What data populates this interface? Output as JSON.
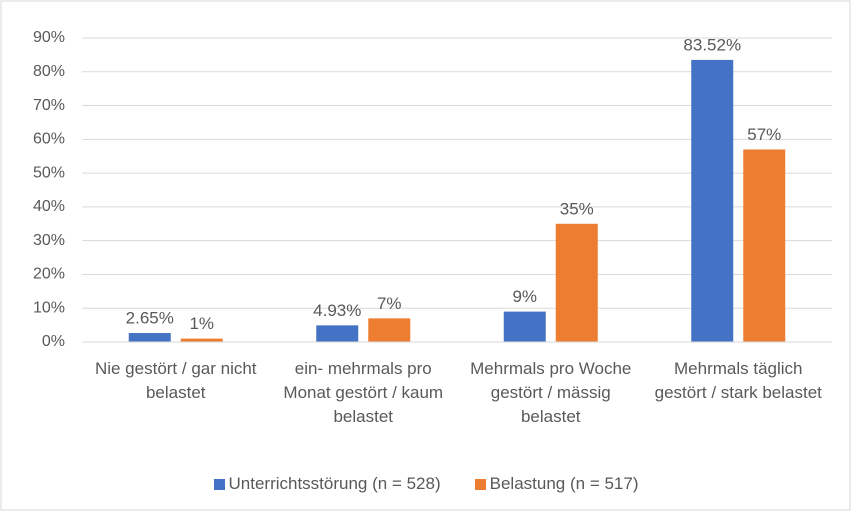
{
  "chart_data": {
    "type": "bar",
    "categories": [
      "Nie gestört / gar nicht belastet",
      "ein- mehrmals pro Monat gestört / kaum belastet",
      "Mehrmals pro Woche gestört / mässig belastet",
      "Mehrmals täglich gestört / stark belastet"
    ],
    "series": [
      {
        "name": "Unterrichtsstörung (n = 528)",
        "color": "#4472c4",
        "values": [
          2.65,
          4.93,
          9,
          83.52
        ],
        "value_labels": [
          "2.65%",
          "4.93%",
          "9%",
          "83.52%"
        ]
      },
      {
        "name": "Belastung (n = 517)",
        "color": "#ed7d31",
        "values": [
          1,
          7,
          35,
          57
        ],
        "value_labels": [
          "1%",
          "7%",
          "35%",
          "57%"
        ]
      }
    ],
    "ylim": [
      0,
      90
    ],
    "yticks": [
      {
        "value": 0,
        "label": "0%"
      },
      {
        "value": 10,
        "label": "10%"
      },
      {
        "value": 20,
        "label": "20%"
      },
      {
        "value": 30,
        "label": "30%"
      },
      {
        "value": 40,
        "label": "40%"
      },
      {
        "value": 50,
        "label": "50%"
      },
      {
        "value": 60,
        "label": "60%"
      },
      {
        "value": 70,
        "label": "70%"
      },
      {
        "value": 80,
        "label": "80%"
      },
      {
        "value": 90,
        "label": "90%"
      }
    ],
    "grid": true,
    "legend": "bottom"
  }
}
